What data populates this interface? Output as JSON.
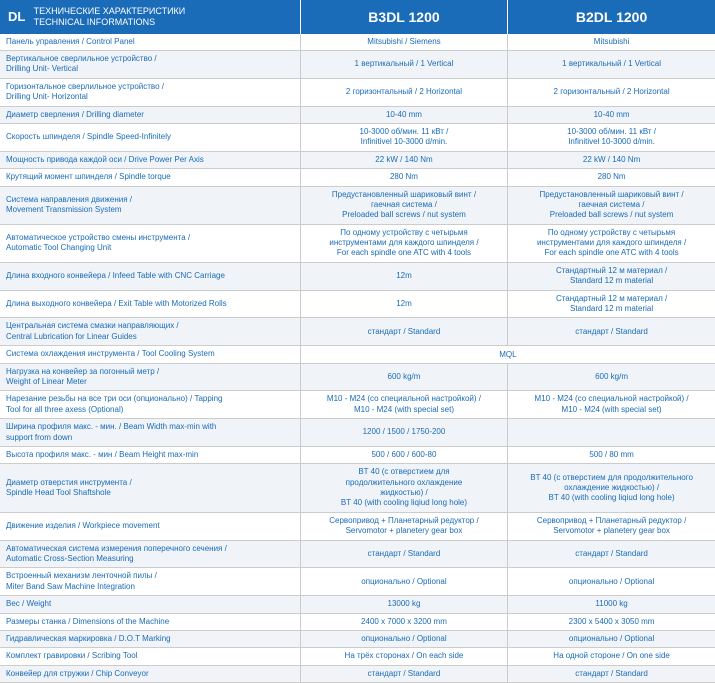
{
  "header": {
    "dl": "DL",
    "title_ru": "ТЕХНИЧЕСКИЕ ХАРАКТЕРИСТИКИ",
    "title_en": "TECHNICAL INFORMATIONS",
    "model1": "B3DL 1200",
    "model2": "B2DL 1200"
  },
  "colors": {
    "header_bg": "#1a6bb8",
    "text": "#1a6bb8",
    "row_alt": "#f0f4f8"
  },
  "rows": [
    {
      "label": "Панель управления / Control Panel",
      "v1": "Mitsubishi / Siemens",
      "v2": "Mitsubishi"
    },
    {
      "label": "Вертикальное сверлильное устройство /\nDrilling Unit- Vertical",
      "v1": "1 вертикальный / 1 Vertical",
      "v2": "1 вертикальный / 1 Vertical"
    },
    {
      "label": "Горизонтальное сверлильное устройство /\nDrilling Unit- Horizontal",
      "v1": "2 горизонтальный / 2 Horizontal",
      "v2": "2 горизонтальный / 2 Horizontal"
    },
    {
      "label": "Диаметр сверления / Drilling diameter",
      "v1": "10-40 mm",
      "v2": "10-40 mm"
    },
    {
      "label": "Скорость шпинделя / Spindle Speed-Infinitely",
      "v1": "10-3000 об/мин. 11 кВт /\nInfinitivel 10-3000 d/min.",
      "v2": "10-3000 об/мин. 11 кВт /\nInfinitivel 10-3000 d/min."
    },
    {
      "label": "Мощность привода каждой оси / Drive Power Per Axis",
      "v1": "22 kW / 140 Nm",
      "v2": "22 kW / 140 Nm"
    },
    {
      "label": "Крутящий момент шпинделя / Spindle torque",
      "v1": "280 Nm",
      "v2": "280 Nm"
    },
    {
      "label": "Система направления движения /\nMovement Transmission System",
      "v1": "Предустановленный шариковый винт /\nгаечная система /\nPreloaded ball screws / nut system",
      "v2": "Предустановленный шариковый винт /\nгаечная система /\nPreloaded ball screws / nut system"
    },
    {
      "label": "Автоматическое устройство смены инструмента /\nAutomatic Tool Changing Unit",
      "v1": "По одному устройству с четырьмя\nинструментами для каждого шпинделя /\nFor each spindle one ATC with 4 tools",
      "v2": "По одному устройству с четырьмя\nинструментами для каждого шпинделя /\nFor each spindle one ATC with 4 tools"
    },
    {
      "label": "Длина входного конвейера / Infeed Table with CNC Carriage",
      "v1": "12m",
      "v2": "Стандартный 12 м материал /\nStandard 12 m material"
    },
    {
      "label": "Длина выходного конвейера / Exit Table with Motorized Rolls",
      "v1": "12m",
      "v2": "Стандартный 12 м материал /\nStandard 12 m material"
    },
    {
      "label": "Центральная система смазки направляющих /\nCentral Lubrication for Linear Guides",
      "v1": "стандарт / Standard",
      "v2": "стандарт / Standard"
    },
    {
      "label": "Система охлаждения инструмента / Tool Cooling System",
      "merged": true,
      "v1": "MQL"
    },
    {
      "label": "Нагрузка на конвейер за погонный метр /\nWeight of Linear Meter",
      "v1": "600 kg/m",
      "v2": "600 kg/m"
    },
    {
      "label": "Нарезание резьбы на все три оси (опционально) / Tapping\nTool  for all three axess (Optional)",
      "v1": "M10 - M24 (со специальной настройкой) /\nM10 - M24 (with special set)",
      "v2": "M10 - M24 (со специальной настройкой) /\nM10 - M24 (with special set)"
    },
    {
      "label": "Ширина профиля макс. - мин. / Beam Width max-min with\nsupport from down",
      "v1": "1200 / 1500 / 1750-200",
      "v2": ""
    },
    {
      "label": "Высота профиля макс. - мин / Beam Height max-min",
      "v1": "500 / 600 / 600-80",
      "v2": "500 / 80 mm"
    },
    {
      "label": "Диаметр отверстия инструмента /\nSpindle Head Tool Shaftshole",
      "v1": "BT 40 (с отверстием для\nпродолжительного охлаждение\nжидкостью) /\nBT 40 (with cooling liqiud long hole)",
      "v2": "BT 40 (с отверстием для продолжительного\nохлаждение жидкостью) /\nBT 40 (with cooling liqiud long hole)"
    },
    {
      "label": "Движение изделия / Workpiece movement",
      "v1": "Сервопривод + Планетарный редуктор /\nServomotor + planetery gear box",
      "v2": "Сервопривод + Планетарный редуктор /\nServomotor + planetery gear box"
    },
    {
      "label": "Автоматическая система измерения поперечного сечения /\nAutomatic Cross-Section Measuring",
      "v1": "стандарт / Standard",
      "v2": "стандарт / Standard"
    },
    {
      "label": "Встроенный механизм ленточной пилы /\nMiter Band Saw Machine Integration",
      "v1": "опционально / Optional",
      "v2": "опционально / Optional"
    },
    {
      "label": "Вес / Weight",
      "v1": "13000 kg",
      "v2": "11000 kg"
    },
    {
      "label": "Размеры станка / Dimensions of the Machine",
      "v1": "2400 x 7000 x 3200 mm",
      "v2": "2300 x 5400 x 3050 mm"
    },
    {
      "label": "Гидравлическая маркировка / D.O.T Marking",
      "v1": "опционально / Optional",
      "v2": "опционально / Optional"
    },
    {
      "label": "Комплект гравировки / Scribing Tool",
      "v1": "На трёх сторонах / On each side",
      "v2": "На одной стороне / On one side"
    },
    {
      "label": "Конвейер для стружки / Chip Conveyor",
      "v1": "стандарт / Standard",
      "v2": "стандарт / Standard"
    }
  ]
}
